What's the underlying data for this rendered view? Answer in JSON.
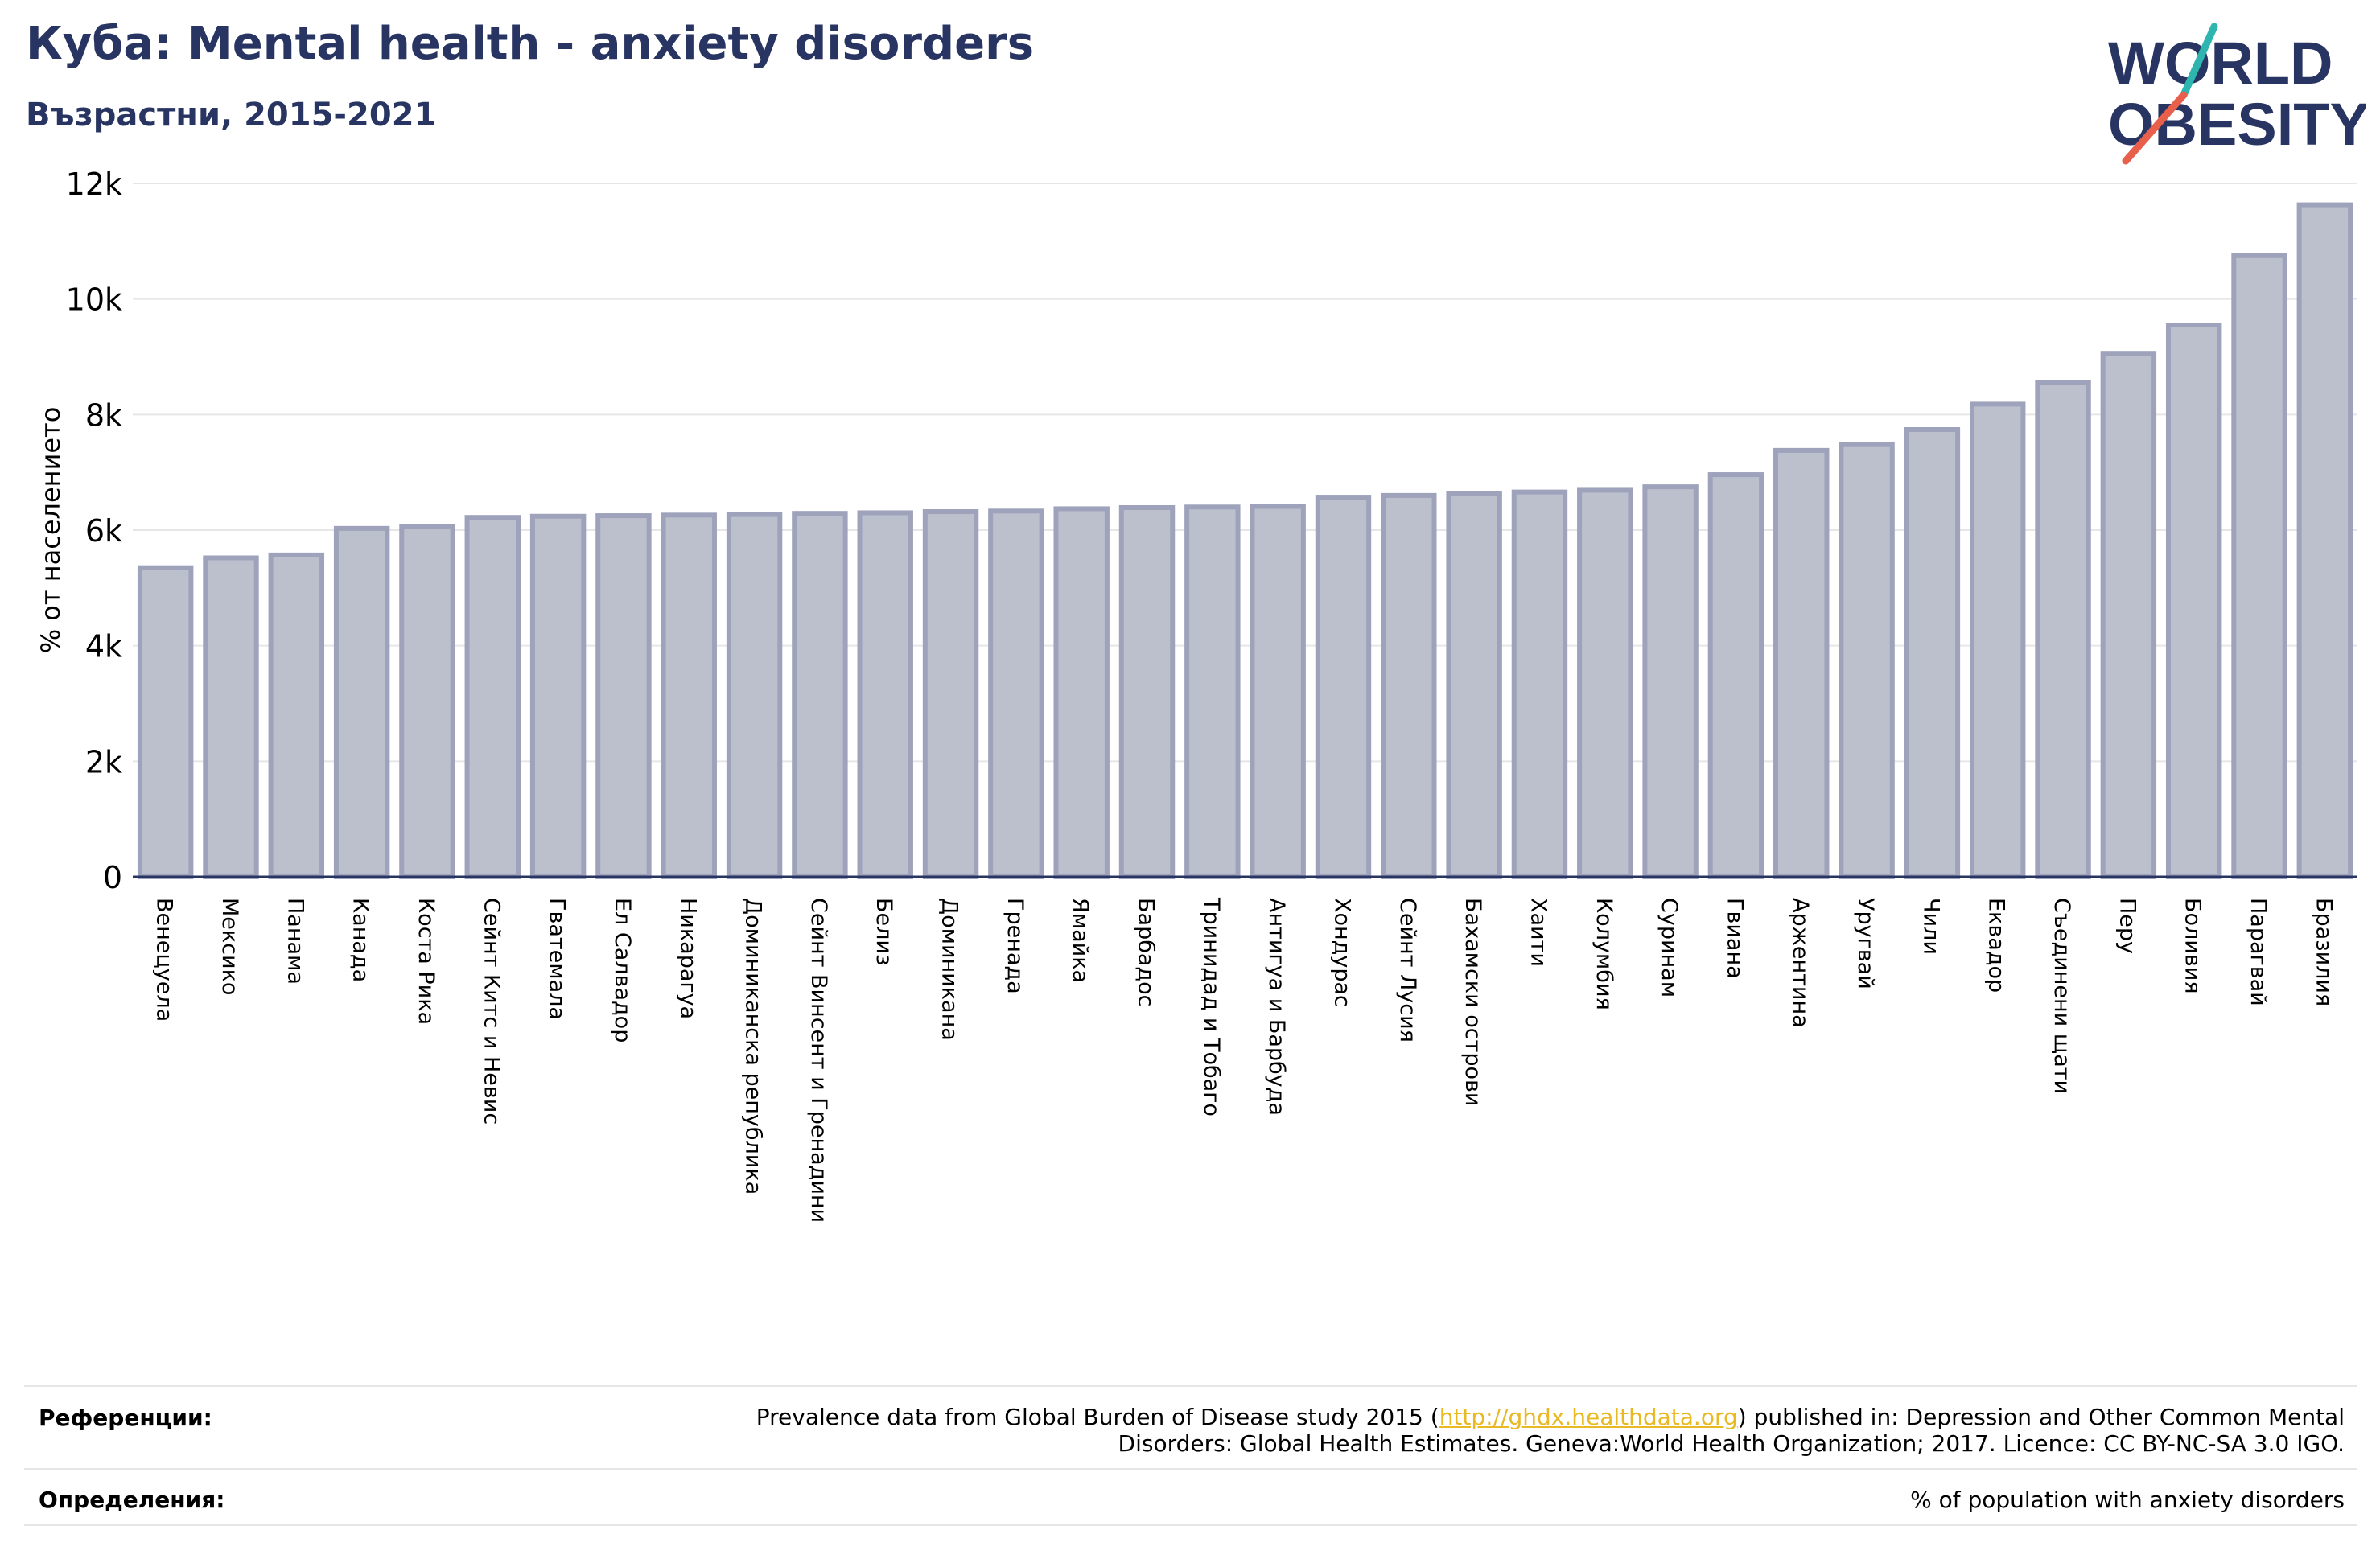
{
  "header": {
    "title": "Куба: Mental health - anxiety disorders",
    "subtitle": "Възрастни, 2015-2021"
  },
  "logo": {
    "line1": "WORLD",
    "line2": "OBESITY"
  },
  "colors": {
    "title": "#283461",
    "bar_fill": "#bcbfcc",
    "bar_stroke": "#9ea3bb",
    "grid": "#e6e6e6",
    "axis": "#283461",
    "link": "#e8b923",
    "logo_teal": "#2fb5b0",
    "logo_red": "#e8604c"
  },
  "chart_data": {
    "type": "bar",
    "ylabel": "% от населението",
    "ylim": [
      0,
      12000
    ],
    "yticks": [
      {
        "value": 0,
        "label": "0"
      },
      {
        "value": 2000,
        "label": "2k"
      },
      {
        "value": 4000,
        "label": "4k"
      },
      {
        "value": 6000,
        "label": "6k"
      },
      {
        "value": 8000,
        "label": "8k"
      },
      {
        "value": 10000,
        "label": "10k"
      },
      {
        "value": 12000,
        "label": "12k"
      }
    ],
    "grid": true,
    "categories": [
      "Венецуела",
      "Мексико",
      "Панама",
      "Канада",
      "Коста Рика",
      "Сейнт Китс и Невис",
      "Гватемала",
      "Ел Салвадор",
      "Никарагуа",
      "Доминиканска република",
      "Сейнт Винсент и Гренадини",
      "Белиз",
      "Доминикана",
      "Гренада",
      "Ямайка",
      "Барбадос",
      "Тринидад и Тобаго",
      "Антигуа и Барбуда",
      "Хондурас",
      "Сейнт Лусия",
      "Бахамски острови",
      "Хаити",
      "Колумбия",
      "Суринам",
      "Гвиана",
      "Аржентина",
      "Уругвай",
      "Чили",
      "Еквадор",
      "Съединени щати",
      "Перу",
      "Боливия",
      "Парагвай",
      "Бразилия"
    ],
    "values": [
      5350,
      5520,
      5570,
      6030,
      6060,
      6220,
      6240,
      6250,
      6260,
      6270,
      6290,
      6300,
      6320,
      6330,
      6370,
      6390,
      6400,
      6410,
      6570,
      6600,
      6640,
      6660,
      6690,
      6750,
      6960,
      7380,
      7480,
      7740,
      8180,
      8550,
      9060,
      9550,
      10750,
      11630
    ]
  },
  "references": {
    "label": "Референции:",
    "text_before": "Prevalence data from Global Burden of Disease study 2015 (",
    "link": "http://ghdx.healthdata.org",
    "text_after": ") published in: Depression and Other Common Mental",
    "line2": "Disorders: Global Health Estimates. Geneva:World Health Organization; 2017. Licence: CC BY-NC-SA 3.0 IGO."
  },
  "definitions": {
    "label": "Определения:",
    "text": "% of population with anxiety disorders"
  }
}
